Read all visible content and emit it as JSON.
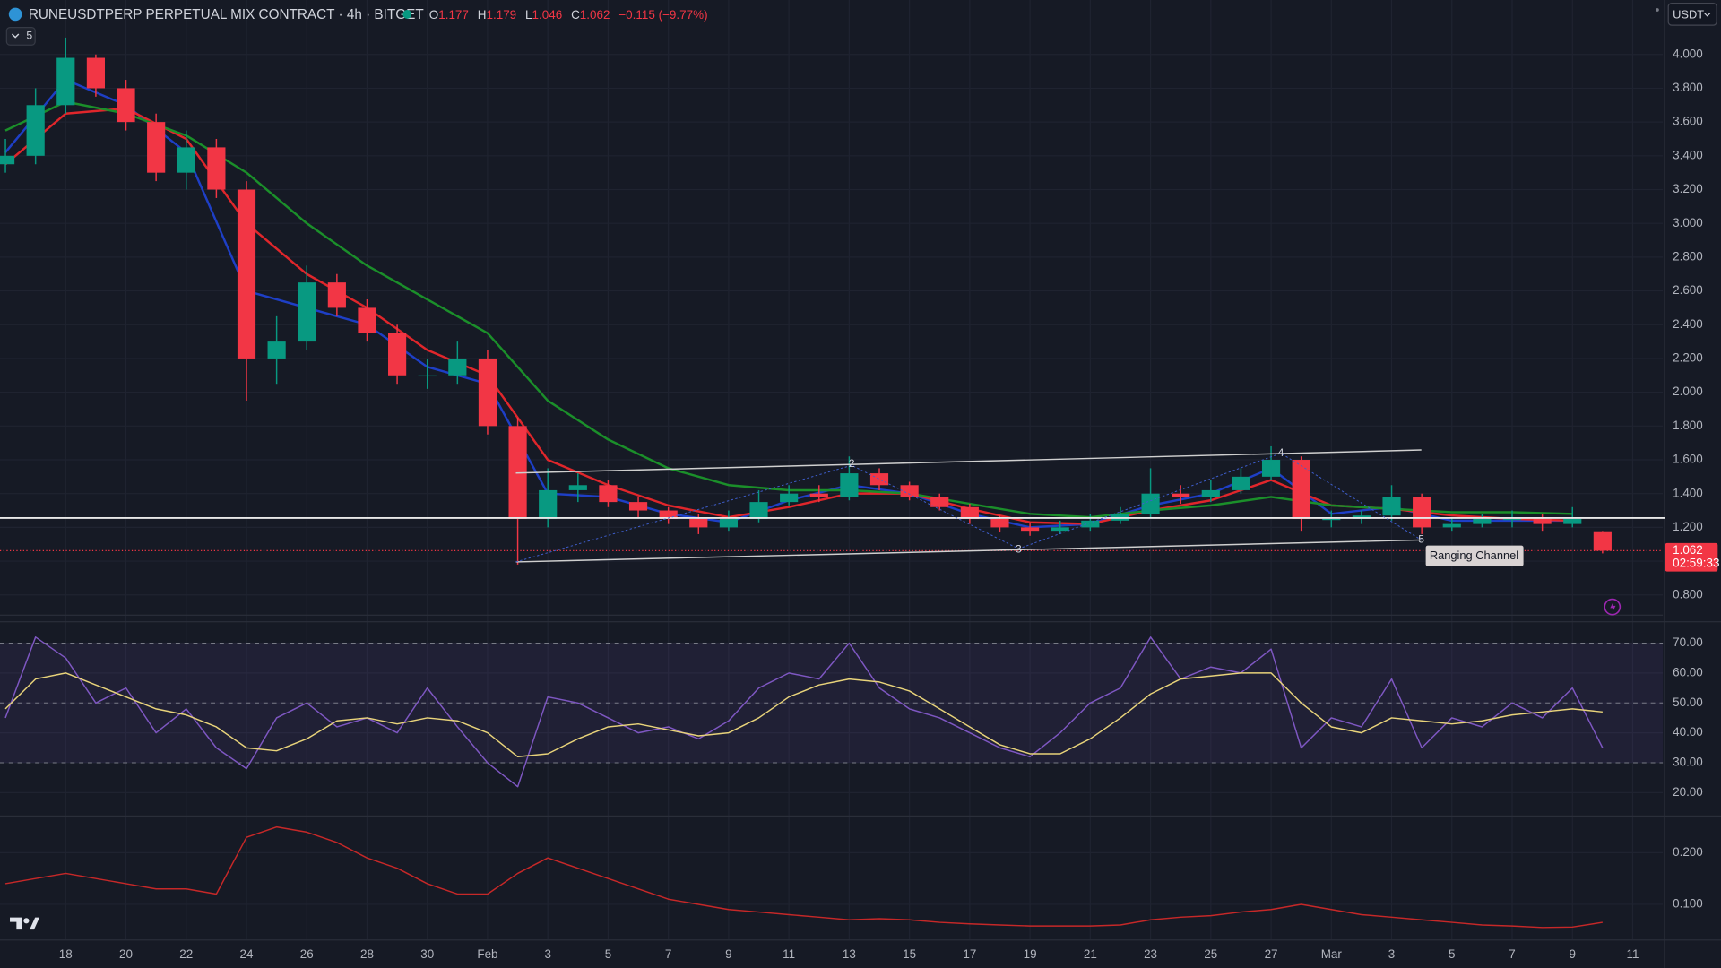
{
  "header": {
    "symbol": "RUNEUSDTPERP PERPETUAL MIX CONTRACT · 4h · BITGET",
    "ohlc": [
      {
        "label": "O",
        "value": 1.177
      },
      {
        "label": "H",
        "value": 1.179
      },
      {
        "label": "L",
        "value": 1.046
      },
      {
        "label": "C",
        "value": 1.062
      }
    ],
    "change": "−0.115 (−9.77%)",
    "indicator_count": "5",
    "currency": "USDT"
  },
  "chart_data": [
    {
      "type": "candlestick",
      "x": [
        0,
        1,
        2,
        3,
        4,
        5,
        6,
        7,
        8,
        9,
        10,
        11,
        12,
        13,
        14,
        15,
        16,
        17,
        18,
        19,
        20,
        21,
        22,
        23,
        24,
        25,
        26,
        27,
        28,
        29,
        30,
        31,
        32,
        33,
        34,
        35,
        36,
        37,
        38,
        39,
        40,
        41,
        42,
        43,
        44,
        45,
        46,
        47,
        48,
        49,
        50,
        51,
        52,
        53
      ],
      "open": [
        3.35,
        3.4,
        3.7,
        3.98,
        3.8,
        3.6,
        3.3,
        3.45,
        3.2,
        2.2,
        2.3,
        2.65,
        2.5,
        2.35,
        2.1,
        2.1,
        2.2,
        1.8,
        1.25,
        1.42,
        1.45,
        1.35,
        1.3,
        1.25,
        1.2,
        1.25,
        1.35,
        1.4,
        1.38,
        1.52,
        1.45,
        1.38,
        1.32,
        1.25,
        1.2,
        1.18,
        1.2,
        1.24,
        1.28,
        1.4,
        1.38,
        1.42,
        1.5,
        1.6,
        1.25,
        1.25,
        1.27,
        1.38,
        1.2,
        1.22,
        1.25,
        1.25,
        1.22,
        1.177
      ],
      "high": [
        3.5,
        3.8,
        4.1,
        4.0,
        3.85,
        3.65,
        3.55,
        3.5,
        3.25,
        2.45,
        2.75,
        2.7,
        2.55,
        2.4,
        2.2,
        2.3,
        2.25,
        1.85,
        1.55,
        1.52,
        1.48,
        1.38,
        1.32,
        1.28,
        1.3,
        1.42,
        1.45,
        1.45,
        1.62,
        1.55,
        1.47,
        1.4,
        1.34,
        1.27,
        1.23,
        1.24,
        1.28,
        1.32,
        1.55,
        1.45,
        1.48,
        1.55,
        1.68,
        1.62,
        1.3,
        1.3,
        1.45,
        1.4,
        1.26,
        1.28,
        1.3,
        1.28,
        1.32,
        1.179
      ],
      "low": [
        3.3,
        3.35,
        3.65,
        3.75,
        3.55,
        3.25,
        3.2,
        3.15,
        1.95,
        2.05,
        2.25,
        2.45,
        2.3,
        2.05,
        2.02,
        2.05,
        1.75,
        0.98,
        1.2,
        1.35,
        1.32,
        1.26,
        1.22,
        1.16,
        1.18,
        1.23,
        1.33,
        1.35,
        1.36,
        1.42,
        1.36,
        1.3,
        1.22,
        1.17,
        1.15,
        1.16,
        1.18,
        1.22,
        1.26,
        1.34,
        1.35,
        1.4,
        1.48,
        1.18,
        1.2,
        1.22,
        1.24,
        1.16,
        1.18,
        1.2,
        1.2,
        1.18,
        1.2,
        1.046
      ],
      "close": [
        3.4,
        3.7,
        3.98,
        3.8,
        3.6,
        3.3,
        3.45,
        3.2,
        2.2,
        2.3,
        2.65,
        2.5,
        2.35,
        2.1,
        2.1,
        2.2,
        1.8,
        1.25,
        1.42,
        1.45,
        1.35,
        1.3,
        1.25,
        1.2,
        1.25,
        1.35,
        1.4,
        1.38,
        1.52,
        1.45,
        1.38,
        1.32,
        1.25,
        1.2,
        1.18,
        1.2,
        1.24,
        1.28,
        1.4,
        1.38,
        1.42,
        1.5,
        1.6,
        1.25,
        1.25,
        1.27,
        1.38,
        1.2,
        1.22,
        1.25,
        1.25,
        1.22,
        1.25,
        1.062
      ],
      "up_color": "#089981",
      "down_color": "#f23645",
      "series": [
        {
          "color": "#1e3fc6",
          "x": [
            0,
            2,
            4,
            6,
            8,
            10,
            12,
            14,
            16,
            18,
            20,
            22,
            24,
            26,
            28,
            30,
            32,
            34,
            36,
            38,
            40,
            42,
            44,
            46,
            48,
            50,
            52
          ],
          "values": [
            3.42,
            3.85,
            3.7,
            3.42,
            2.6,
            2.5,
            2.4,
            2.15,
            2.05,
            1.4,
            1.38,
            1.28,
            1.23,
            1.36,
            1.45,
            1.4,
            1.28,
            1.2,
            1.22,
            1.33,
            1.4,
            1.55,
            1.28,
            1.32,
            1.24,
            1.24,
            1.24
          ]
        },
        {
          "color": "#e0262b",
          "x": [
            0,
            2,
            4,
            6,
            8,
            10,
            12,
            14,
            16,
            18,
            20,
            22,
            24,
            26,
            28,
            30,
            32,
            34,
            36,
            38,
            40,
            42,
            44,
            46,
            48,
            50,
            52
          ],
          "values": [
            3.35,
            3.65,
            3.68,
            3.5,
            3.0,
            2.7,
            2.5,
            2.25,
            2.1,
            1.6,
            1.45,
            1.33,
            1.26,
            1.32,
            1.4,
            1.4,
            1.31,
            1.23,
            1.22,
            1.3,
            1.36,
            1.48,
            1.33,
            1.31,
            1.27,
            1.25,
            1.24
          ]
        },
        {
          "color": "#1b8f2a",
          "x": [
            0,
            2,
            4,
            6,
            8,
            10,
            12,
            14,
            16,
            18,
            20,
            22,
            24,
            26,
            28,
            30,
            32,
            34,
            36,
            38,
            40,
            42,
            44,
            46,
            48,
            50,
            52
          ],
          "values": [
            3.55,
            3.72,
            3.65,
            3.52,
            3.3,
            3.0,
            2.75,
            2.55,
            2.35,
            1.95,
            1.72,
            1.55,
            1.45,
            1.42,
            1.42,
            1.4,
            1.34,
            1.28,
            1.26,
            1.3,
            1.33,
            1.38,
            1.33,
            1.31,
            1.29,
            1.29,
            1.28
          ]
        }
      ],
      "xlim": [
        -0.18,
        55.0
      ],
      "ylim": [
        0.69,
        4.16
      ],
      "xticks": [
        {
          "value": 2,
          "label": "18"
        },
        {
          "value": 4,
          "label": "20"
        },
        {
          "value": 6,
          "label": "22"
        },
        {
          "value": 8,
          "label": "24"
        },
        {
          "value": 10,
          "label": "26"
        },
        {
          "value": 12,
          "label": "28"
        },
        {
          "value": 14,
          "label": "30"
        },
        {
          "value": 16,
          "label": "Feb"
        },
        {
          "value": 18,
          "label": "3"
        },
        {
          "value": 20,
          "label": "5"
        },
        {
          "value": 22,
          "label": "7"
        },
        {
          "value": 24,
          "label": "9"
        },
        {
          "value": 26,
          "label": "11"
        },
        {
          "value": 28,
          "label": "13"
        },
        {
          "value": 30,
          "label": "15"
        },
        {
          "value": 32,
          "label": "17"
        },
        {
          "value": 34,
          "label": "19"
        },
        {
          "value": 36,
          "label": "21"
        },
        {
          "value": 38,
          "label": "23"
        },
        {
          "value": 40,
          "label": "25"
        },
        {
          "value": 42,
          "label": "27"
        },
        {
          "value": 44,
          "label": "Mar"
        },
        {
          "value": 46,
          "label": "3"
        },
        {
          "value": 48,
          "label": "5"
        },
        {
          "value": 50,
          "label": "7"
        },
        {
          "value": 52,
          "label": "9"
        },
        {
          "value": 54,
          "label": "11"
        }
      ],
      "yticks": [
        {
          "value": 0.8,
          "label": "0.800"
        },
        {
          "value": 1.0,
          "label": "1.000"
        },
        {
          "value": 1.2,
          "label": "1.200"
        },
        {
          "value": 1.4,
          "label": "1.400"
        },
        {
          "value": 1.6,
          "label": "1.600"
        },
        {
          "value": 1.8,
          "label": "1.800"
        },
        {
          "value": 2.0,
          "label": "2.000"
        },
        {
          "value": 2.2,
          "label": "2.200"
        },
        {
          "value": 2.4,
          "label": "2.400"
        },
        {
          "value": 2.6,
          "label": "2.600"
        },
        {
          "value": 2.8,
          "label": "2.800"
        },
        {
          "value": 3.0,
          "label": "3.000"
        },
        {
          "value": 3.2,
          "label": "3.200"
        },
        {
          "value": 3.4,
          "label": "3.400"
        },
        {
          "value": 3.6,
          "label": "3.600"
        },
        {
          "value": 3.8,
          "label": "3.800"
        },
        {
          "value": 4.0,
          "label": "4.000"
        }
      ],
      "grid": true,
      "last_price": 1.062,
      "countdown": "02:59:33",
      "annotations": {
        "channel": "Ranging Channel",
        "wave_labels": [
          "2",
          "3",
          "4",
          "5"
        ]
      }
    },
    {
      "type": "line",
      "x": [
        0,
        1,
        2,
        3,
        4,
        5,
        6,
        7,
        8,
        9,
        10,
        11,
        12,
        13,
        14,
        15,
        16,
        17,
        18,
        19,
        20,
        21,
        22,
        23,
        24,
        25,
        26,
        27,
        28,
        29,
        30,
        31,
        32,
        33,
        34,
        35,
        36,
        37,
        38,
        39,
        40,
        41,
        42,
        43,
        44,
        45,
        46,
        47,
        48,
        49,
        50,
        51,
        52,
        53
      ],
      "series": [
        {
          "color": "#7e57c2",
          "values": [
            45,
            72,
            65,
            50,
            55,
            40,
            48,
            35,
            28,
            45,
            50,
            42,
            45,
            40,
            55,
            42,
            30,
            22,
            52,
            50,
            45,
            40,
            42,
            38,
            44,
            55,
            60,
            58,
            70,
            55,
            48,
            45,
            40,
            35,
            32,
            40,
            50,
            55,
            72,
            58,
            62,
            60,
            68,
            35,
            45,
            42,
            58,
            35,
            45,
            42,
            50,
            45,
            55,
            35
          ]
        },
        {
          "color": "#e8d37a",
          "values": [
            48,
            58,
            60,
            56,
            52,
            48,
            46,
            42,
            35,
            34,
            38,
            44,
            45,
            43,
            45,
            44,
            40,
            32,
            33,
            38,
            42,
            43,
            41,
            39,
            40,
            45,
            52,
            56,
            58,
            57,
            54,
            48,
            42,
            36,
            33,
            33,
            38,
            45,
            53,
            58,
            59,
            60,
            60,
            50,
            42,
            40,
            45,
            44,
            43,
            44,
            46,
            47,
            48,
            47
          ]
        }
      ],
      "xlim": [
        -0.18,
        55.0
      ],
      "ylim": [
        12.75,
        76.6
      ],
      "yticks": [
        {
          "value": 20,
          "label": "20.00"
        },
        {
          "value": 30,
          "label": "30.00"
        },
        {
          "value": 40,
          "label": "40.00"
        },
        {
          "value": 50,
          "label": "50.00"
        },
        {
          "value": 60,
          "label": "60.00"
        },
        {
          "value": 70,
          "label": "70.00"
        }
      ],
      "levels": [
        30,
        50,
        70
      ]
    },
    {
      "type": "line",
      "x": [
        0,
        1,
        2,
        3,
        4,
        5,
        6,
        7,
        8,
        9,
        10,
        11,
        12,
        13,
        14,
        15,
        16,
        17,
        18,
        19,
        20,
        21,
        22,
        23,
        24,
        25,
        26,
        27,
        28,
        29,
        30,
        31,
        32,
        33,
        34,
        35,
        36,
        37,
        38,
        39,
        40,
        41,
        42,
        43,
        44,
        45,
        46,
        47,
        48,
        49,
        50,
        51,
        52,
        53
      ],
      "series": [
        {
          "color": "#c62828",
          "values": [
            0.14,
            0.15,
            0.16,
            0.15,
            0.14,
            0.13,
            0.13,
            0.12,
            0.23,
            0.25,
            0.24,
            0.22,
            0.19,
            0.17,
            0.14,
            0.12,
            0.12,
            0.16,
            0.19,
            0.17,
            0.15,
            0.13,
            0.11,
            0.1,
            0.09,
            0.085,
            0.08,
            0.075,
            0.07,
            0.072,
            0.07,
            0.065,
            0.062,
            0.06,
            0.058,
            0.058,
            0.058,
            0.06,
            0.07,
            0.075,
            0.078,
            0.085,
            0.09,
            0.1,
            0.09,
            0.08,
            0.075,
            0.07,
            0.065,
            0.06,
            0.058,
            0.055,
            0.056,
            0.065
          ]
        }
      ],
      "xlim": [
        -0.18,
        55.0
      ],
      "ylim": [
        0.034,
        0.268
      ],
      "yticks": [
        {
          "value": 0.1,
          "label": "0.100"
        },
        {
          "value": 0.2,
          "label": "0.200"
        }
      ]
    }
  ]
}
